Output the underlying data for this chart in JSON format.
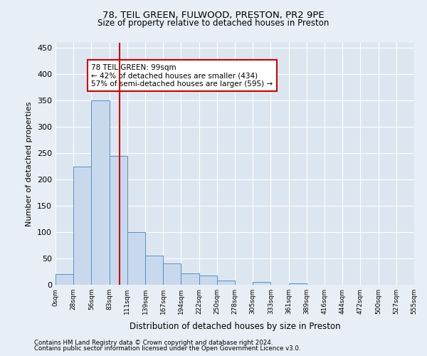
{
  "title1": "78, TEIL GREEN, FULWOOD, PRESTON, PR2 9PE",
  "title2": "Size of property relative to detached houses in Preston",
  "xlabel": "Distribution of detached houses by size in Preston",
  "ylabel": "Number of detached properties",
  "bin_labels": [
    "0sqm",
    "28sqm",
    "56sqm",
    "83sqm",
    "111sqm",
    "139sqm",
    "167sqm",
    "194sqm",
    "222sqm",
    "250sqm",
    "278sqm",
    "305sqm",
    "333sqm",
    "361sqm",
    "389sqm",
    "416sqm",
    "444sqm",
    "472sqm",
    "500sqm",
    "527sqm",
    "555sqm"
  ],
  "bar_values": [
    20,
    225,
    350,
    245,
    100,
    55,
    40,
    22,
    18,
    8,
    0,
    5,
    0,
    3,
    0,
    0,
    0,
    0,
    0,
    0
  ],
  "bar_color": "#c9d9ed",
  "bar_edge_color": "#5a8fc0",
  "vline_color": "#cc0000",
  "annotation_text": "78 TEIL GREEN: 99sqm\n← 42% of detached houses are smaller (434)\n57% of semi-detached houses are larger (595) →",
  "annotation_box_color": "#ffffff",
  "annotation_box_edge": "#cc0000",
  "footnote1": "Contains HM Land Registry data © Crown copyright and database right 2024.",
  "footnote2": "Contains public sector information licensed under the Open Government Licence v3.0.",
  "ylim": [
    0,
    460
  ],
  "yticks": [
    0,
    50,
    100,
    150,
    200,
    250,
    300,
    350,
    400,
    450
  ],
  "background_color": "#e8eef5",
  "plot_bg_color": "#dce6f0"
}
